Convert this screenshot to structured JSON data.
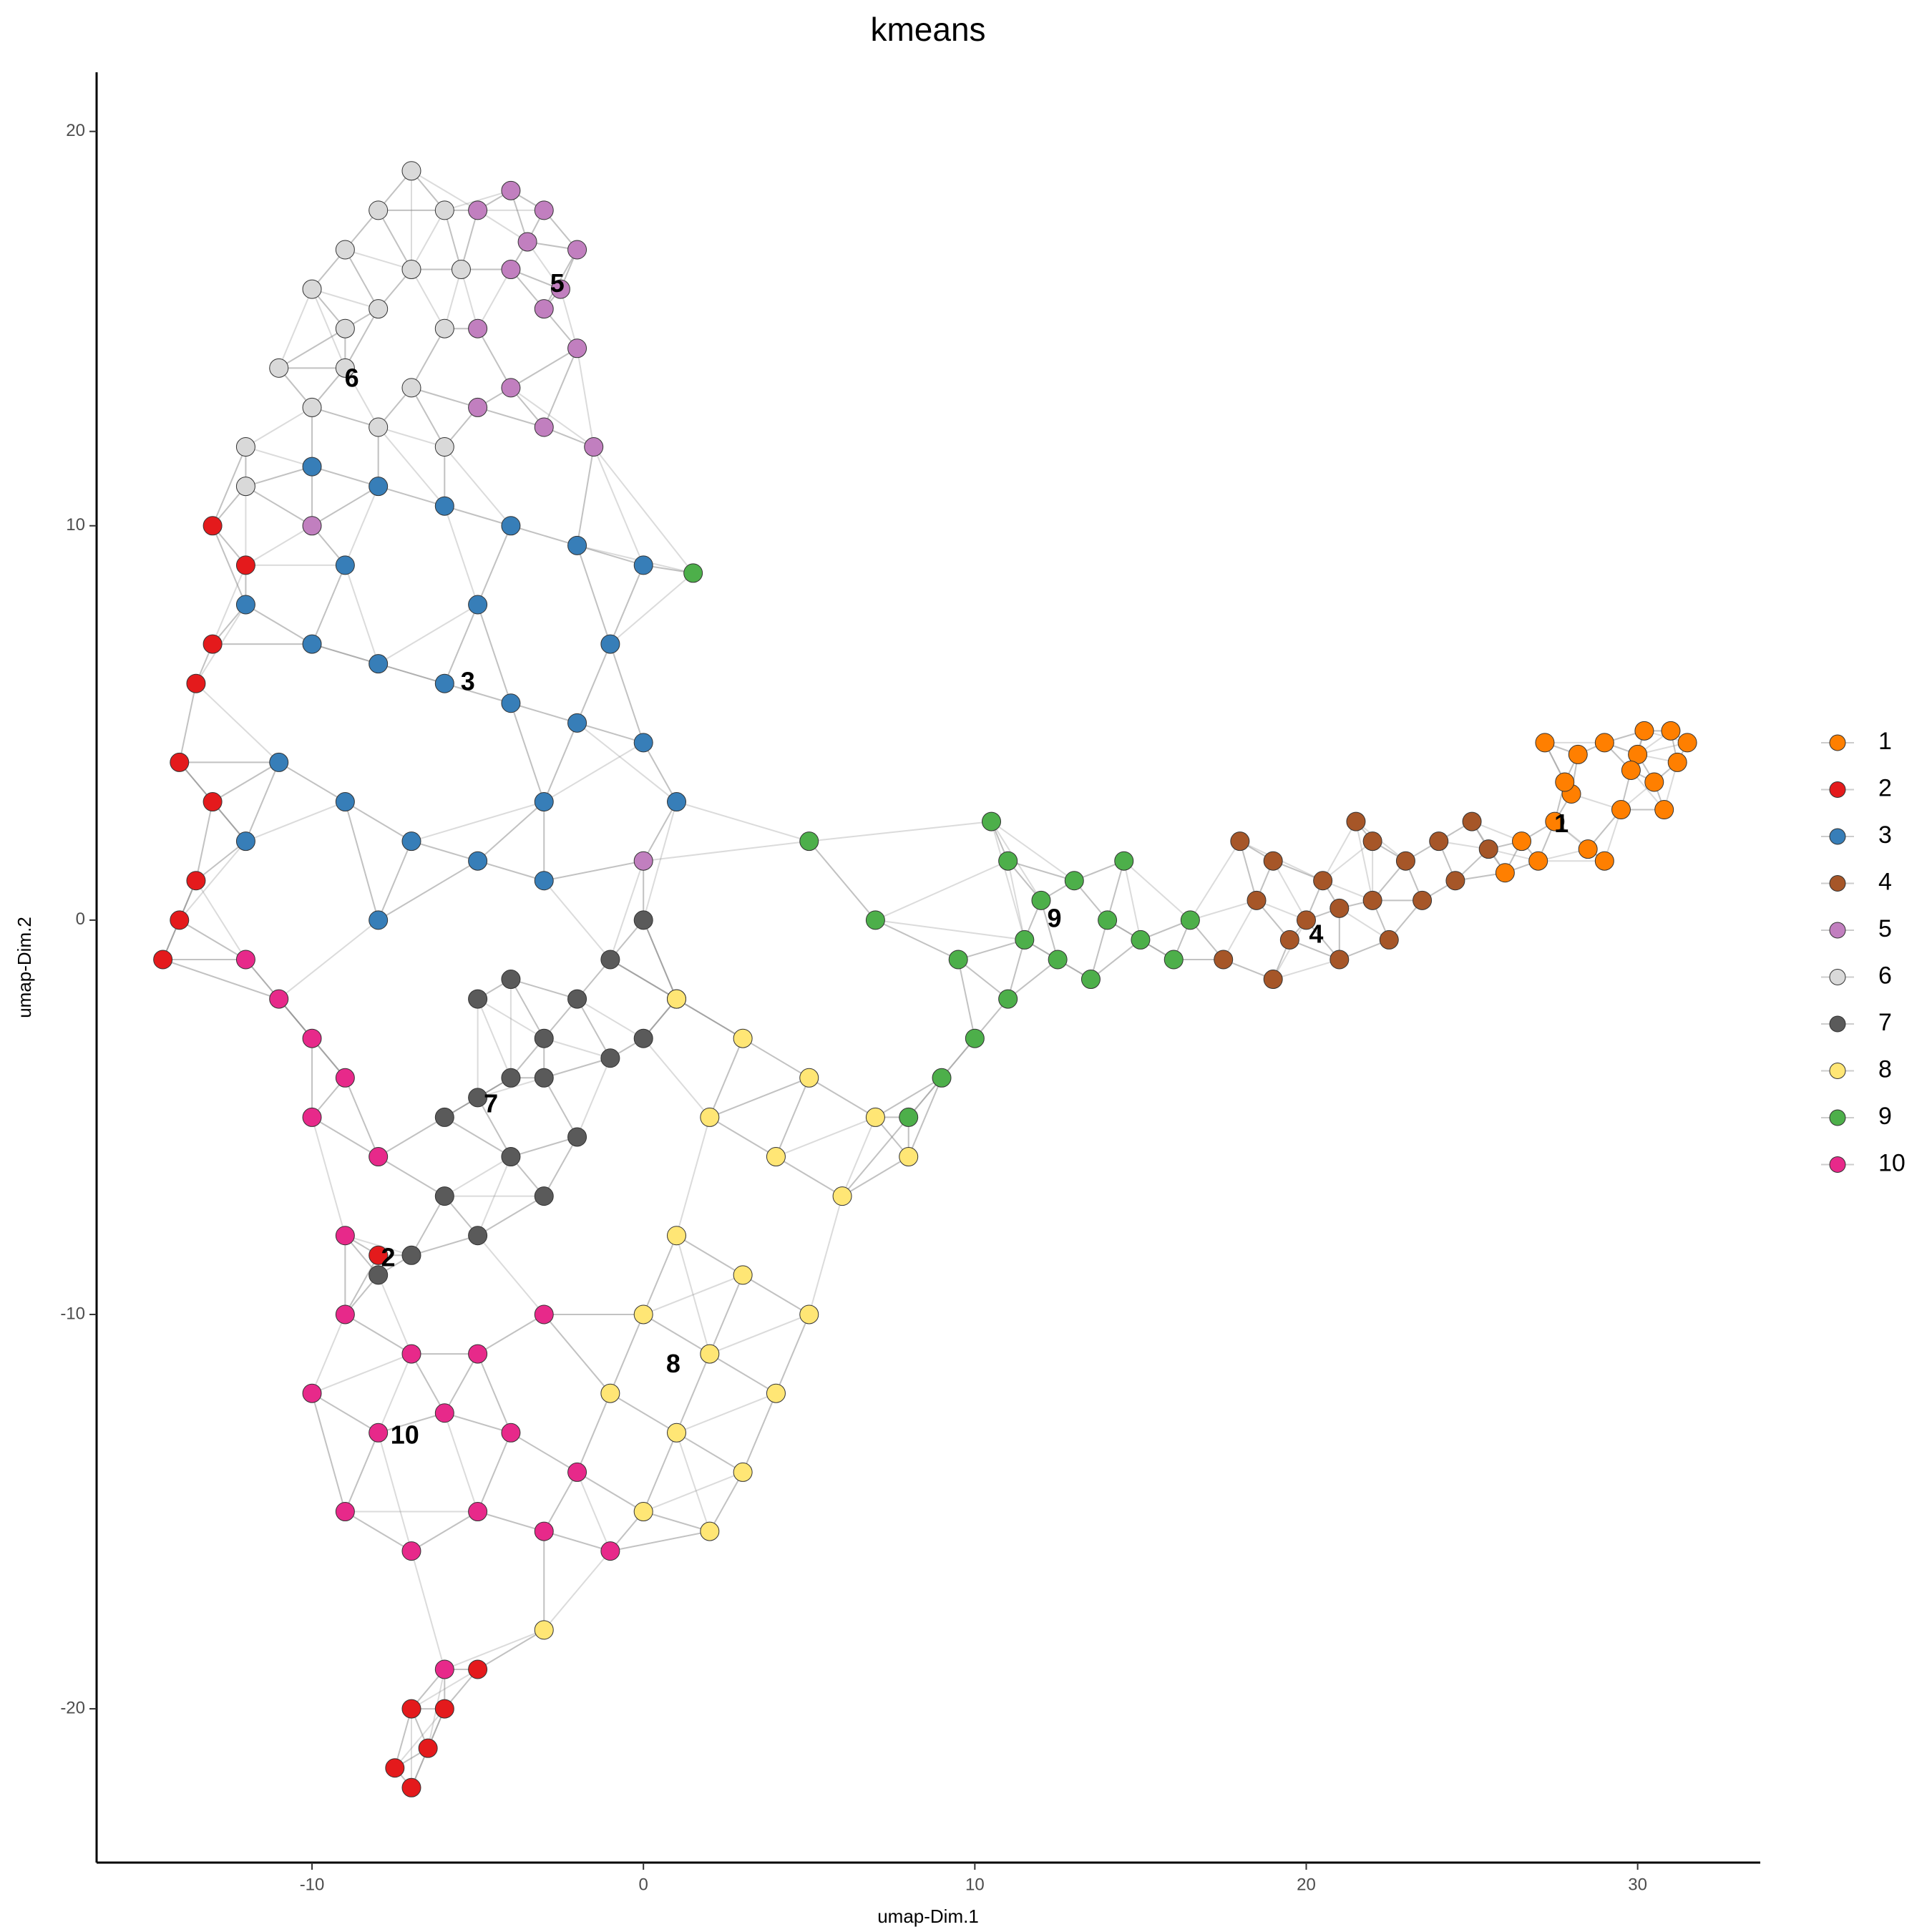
{
  "chart_data": {
    "type": "scatter",
    "title": "kmeans",
    "x_label": "umap-Dim.1",
    "y_label": "umap-Dim.2",
    "xlim": [
      -16.5,
      33.7
    ],
    "ylim": [
      -23.9,
      21.5
    ],
    "xticks": [
      -10,
      0,
      10,
      20,
      30
    ],
    "yticks": [
      -20,
      -10,
      0,
      10,
      20
    ],
    "series": [
      {
        "name": "1",
        "color": "#ff7f00",
        "x": [
          27.5,
          28,
          29,
          30,
          31,
          30.5,
          29.5,
          28.5,
          27,
          26.5,
          31.2,
          29.8,
          28.2,
          27.8,
          30.8,
          26,
          29,
          27.2,
          31.5,
          30.2
        ],
        "values": [
          2.5,
          3.2,
          4.5,
          4.2,
          4.8,
          3.5,
          2.8,
          1.8,
          1.5,
          2,
          4,
          3.8,
          4.2,
          3.5,
          2.8,
          1.2,
          1.5,
          4.5,
          4.5,
          4.8
        ]
      },
      {
        "name": "2",
        "color": "#e41a1c",
        "x": [
          -13,
          -12,
          -13,
          -13.5,
          -14,
          -13,
          -13.5,
          -14,
          -14.5,
          -7,
          -6.5,
          -7.5,
          -6,
          -7,
          -5,
          -8
        ],
        "values": [
          10,
          9,
          7,
          6,
          4,
          3,
          1,
          0,
          -1,
          -20,
          -21,
          -21.5,
          -20,
          -22,
          -19,
          -8.5
        ]
      },
      {
        "name": "3",
        "color": "#377eb8",
        "x": [
          -10,
          -8,
          -6,
          -4,
          -2,
          -12,
          -10,
          -8,
          -6,
          -4,
          -2,
          0,
          1,
          -11,
          -9,
          -7,
          -5,
          -3,
          -12,
          -8,
          -1,
          -5,
          -9,
          0,
          -3
        ],
        "values": [
          11.5,
          11,
          10.5,
          10,
          9.5,
          8,
          7,
          6.5,
          6,
          5.5,
          5,
          4.5,
          3,
          4,
          3,
          2,
          1.5,
          1,
          2,
          0,
          7,
          8,
          9,
          9,
          3
        ]
      },
      {
        "name": "4",
        "color": "#a65628",
        "x": [
          18,
          19,
          20,
          21,
          22,
          23,
          24,
          25,
          21.5,
          19.5,
          18.5,
          20.5,
          22.5,
          23.5,
          24.5,
          17.5,
          19,
          22,
          25.5,
          21
        ],
        "values": [
          2,
          1.5,
          0,
          -1,
          0.5,
          1.5,
          2,
          2.5,
          2.5,
          -0.5,
          0.5,
          1,
          -0.5,
          0.5,
          1,
          -1,
          -1.5,
          2,
          1.8,
          0.3
        ]
      },
      {
        "name": "5",
        "color": "#c17fbf",
        "x": [
          -5,
          -4,
          -3,
          -2,
          -4,
          -3,
          -5,
          -2,
          -4,
          -3,
          -1.5,
          -5,
          -2.5,
          -3.5,
          0,
          -10
        ],
        "values": [
          18,
          18.5,
          18,
          17,
          16.5,
          15.5,
          15,
          14.5,
          13.5,
          12.5,
          12,
          13,
          16,
          17.2,
          1.5,
          10
        ]
      },
      {
        "name": "6",
        "color": "#d9d9d9",
        "x": [
          -7,
          -8,
          -6,
          -9,
          -7,
          -10,
          -8,
          -6,
          -9,
          -11,
          -7,
          -10,
          -12,
          -8,
          -6,
          -12,
          -9,
          -5.5
        ],
        "values": [
          19,
          18,
          18,
          17,
          16.5,
          16,
          15.5,
          15,
          14,
          14,
          13.5,
          13,
          12,
          12.5,
          12,
          11,
          15,
          16.5
        ]
      },
      {
        "name": "7",
        "color": "#5a5a5a",
        "x": [
          -5,
          -4,
          -3,
          -2,
          -1,
          0,
          1,
          -1,
          -3,
          -5,
          -6,
          -4,
          -2,
          -6,
          -5,
          -7,
          -8,
          -3,
          0,
          -4
        ],
        "values": [
          -2,
          -1.5,
          -3,
          -2,
          -1,
          0,
          -2,
          -3.5,
          -4,
          -4.5,
          -5,
          -6,
          -5.5,
          -7,
          -8,
          -8.5,
          -9,
          -7,
          -3,
          -4
        ]
      },
      {
        "name": "8",
        "color": "#ffe675",
        "x": [
          1,
          3,
          5,
          7,
          8,
          2,
          4,
          6,
          1,
          3,
          5,
          0,
          2,
          4,
          1,
          3,
          0,
          2,
          -1,
          -3
        ],
        "values": [
          -2,
          -3,
          -4,
          -5,
          -6,
          -5,
          -6,
          -7,
          -8,
          -9,
          -10,
          -10,
          -11,
          -12,
          -13,
          -14,
          -15,
          -15.5,
          -12,
          -18
        ]
      },
      {
        "name": "9",
        "color": "#4daf4a",
        "x": [
          10.5,
          11,
          12,
          13,
          14,
          15,
          16,
          12.5,
          11,
          10,
          9,
          8,
          13.5,
          14.5,
          16.5,
          11.5,
          9.5,
          7,
          5,
          1.5
        ],
        "values": [
          2.5,
          1.5,
          0.5,
          1,
          0,
          -0.5,
          -1,
          -1,
          -2,
          -3,
          -4,
          -5,
          -1.5,
          1.5,
          0,
          -0.5,
          -1,
          0,
          2,
          8.8
        ]
      },
      {
        "name": "10",
        "color": "#e7298a",
        "x": [
          -12,
          -11,
          -10,
          -9,
          -10,
          -8,
          -9,
          -9,
          -7,
          -5,
          -3,
          -10,
          -8,
          -6,
          -4,
          -2,
          -9,
          -7,
          -5,
          -3,
          -1,
          -6
        ],
        "values": [
          -1,
          -2,
          -3,
          -4,
          -5,
          -6,
          -8,
          -10,
          -11,
          -11,
          -10,
          -12,
          -13,
          -12.5,
          -13,
          -14,
          -15,
          -16,
          -15,
          -15.5,
          -16,
          -19
        ]
      }
    ],
    "annotations": [
      {
        "text": "1",
        "x": 27.7,
        "y": 2.4
      },
      {
        "text": "2",
        "x": -7.7,
        "y": -8.6
      },
      {
        "text": "3",
        "x": -5.3,
        "y": 6
      },
      {
        "text": "4",
        "x": 20.3,
        "y": -0.4
      },
      {
        "text": "5",
        "x": -2.6,
        "y": 16.1
      },
      {
        "text": "6",
        "x": -8.8,
        "y": 13.7
      },
      {
        "text": "7",
        "x": -4.6,
        "y": -4.7
      },
      {
        "text": "8",
        "x": 0.9,
        "y": -11.3
      },
      {
        "text": "9",
        "x": 12.4,
        "y": 0
      },
      {
        "text": "10",
        "x": -7.2,
        "y": -13.1
      }
    ]
  }
}
